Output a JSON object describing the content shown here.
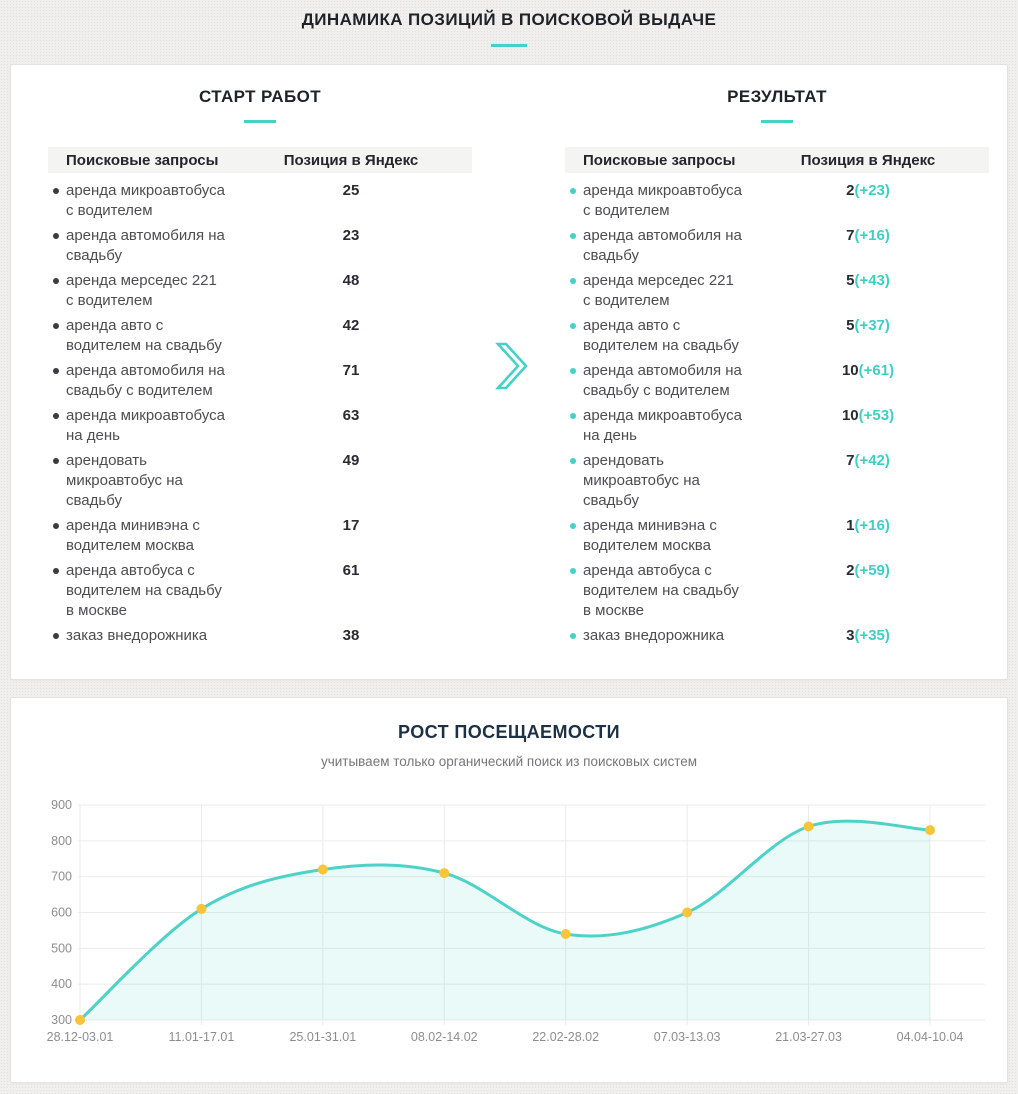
{
  "accent_color": "#45d1c7",
  "page": {
    "title": "ДИНАМИКА ПОЗИЦИЙ В ПОИСКОВОЙ ВЫДАЧЕ"
  },
  "panels": {
    "start": {
      "title": "СТАРТ РАБОТ",
      "col_query": "Поисковые запросы",
      "col_position": "Позиция в Яндекс",
      "rows": [
        {
          "query": "аренда микроавтобуса\nс водителем",
          "position": "25"
        },
        {
          "query": "аренда автомобиля на\nсвадьбу",
          "position": "23"
        },
        {
          "query": "аренда мерседес 221\nс водителем",
          "position": "48"
        },
        {
          "query": "аренда авто с\nводителем на свадьбу",
          "position": "42"
        },
        {
          "query": "аренда автомобиля на\nсвадьбу с водителем",
          "position": "71"
        },
        {
          "query": "аренда микроавтобуса\nна день",
          "position": "63"
        },
        {
          "query": "арендовать\nмикроавтобус на\nсвадьбу",
          "position": "49"
        },
        {
          "query": "аренда минивэна с\nводителем москва",
          "position": "17"
        },
        {
          "query": "аренда автобуса с\nводителем на свадьбу\nв москве",
          "position": "61"
        },
        {
          "query": "заказ внедорожника",
          "position": "38"
        }
      ]
    },
    "result": {
      "title": "РЕЗУЛЬТАТ",
      "col_query": "Поисковые запросы",
      "col_position": "Позиция в Яндекс",
      "rows": [
        {
          "query": "аренда микроавтобуса\nс водителем",
          "position": "2",
          "delta": "(+23)"
        },
        {
          "query": "аренда автомобиля на\nсвадьбу",
          "position": "7",
          "delta": "(+16)"
        },
        {
          "query": "аренда мерседес 221\nс водителем",
          "position": "5",
          "delta": "(+43)"
        },
        {
          "query": "аренда авто с\nводителем на свадьбу",
          "position": "5",
          "delta": "(+37)"
        },
        {
          "query": "аренда автомобиля на\nсвадьбу с водителем",
          "position": "10",
          "delta": "(+61)"
        },
        {
          "query": "аренда микроавтобуса\nна день",
          "position": "10",
          "delta": "(+53)"
        },
        {
          "query": "арендовать\nмикроавтобус на\nсвадьбу",
          "position": "7",
          "delta": "(+42)"
        },
        {
          "query": "аренда минивэна с\nводителем москва",
          "position": "1",
          "delta": "(+16)"
        },
        {
          "query": "аренда автобуса с\nводителем на свадьбу\nв москве",
          "position": "2",
          "delta": "(+59)"
        },
        {
          "query": "заказ внедорожника",
          "position": "3",
          "delta": "(+35)"
        }
      ]
    }
  },
  "chart_data": {
    "type": "line",
    "title": "РОСТ ПОСЕЩАЕМОСТИ",
    "subtitle": "учитываем только органический поиск из поисковых систем",
    "categories": [
      "28.12-03.01",
      "11.01-17.01",
      "25.01-31.01",
      "08.02-14.02",
      "22.02-28.02",
      "07.03-13.03",
      "21.03-27.03",
      "04.04-10.04"
    ],
    "values": [
      300,
      610,
      720,
      710,
      540,
      600,
      840,
      830
    ],
    "xlabel": "",
    "ylabel": "",
    "ylim": [
      300,
      900
    ],
    "yticks": [
      300,
      400,
      500,
      600,
      700,
      800,
      900
    ],
    "grid": true,
    "legend": false,
    "line_color": "#4dd2c8",
    "fill_color": "rgba(77,210,200,0.12)",
    "point_color": "#f8c43a",
    "grid_color": "#ebebeb",
    "axis_label_color": "#8d8d90"
  }
}
